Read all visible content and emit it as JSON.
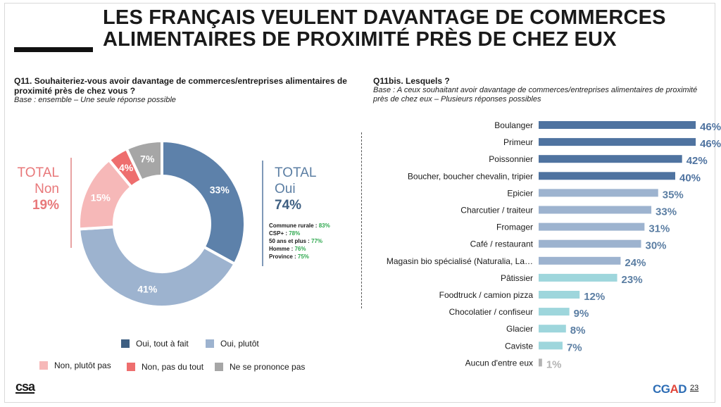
{
  "title": "LES FRANÇAIS VEULENT DAVANTAGE DE COMMERCES ALIMENTAIRES DE PROXIMITÉ PRÈS DE CHEZ EUX",
  "left": {
    "question": "Q11. Souhaiteriez-vous avoir davantage de commerces/entreprises alimentaires de proximité près de chez vous ?",
    "base": "Base : ensemble – Une seule réponse possible",
    "total_non": {
      "label1": "TOTAL",
      "label2": "Non",
      "value": "19%"
    },
    "total_oui": {
      "label1": "TOTAL",
      "label2": "Oui",
      "value": "74%"
    },
    "subgroups": [
      {
        "label": "Commune rurale : ",
        "value": "83%"
      },
      {
        "label": "CSP+ : ",
        "value": "78%"
      },
      {
        "label": "50 ans et plus : ",
        "value": "77%"
      },
      {
        "label": "Homme : ",
        "value": "76%"
      },
      {
        "label": "Province : ",
        "value": "75%"
      }
    ],
    "legend": [
      {
        "label": "Oui, tout à fait",
        "color": "#3e5f82"
      },
      {
        "label": "Oui, plutôt",
        "color": "#9db3cf"
      },
      {
        "label": "Non, plutôt pas",
        "color": "#f6b8b8"
      },
      {
        "label": "Non, pas du tout",
        "color": "#ee6e6e"
      },
      {
        "label": "Ne se prononce pas",
        "color": "#a6a6a6"
      }
    ]
  },
  "right": {
    "question": "Q11bis. Lesquels ?",
    "base": "Base : A ceux souhaitant avoir davantage de commerces/entreprises alimentaires de proximité près de chez eux – Plusieurs réponses possibles"
  },
  "footer": {
    "logo_left": "csa",
    "logo_right_1": "CG",
    "logo_right_2": "A",
    "logo_right_3": "D",
    "page": "23"
  },
  "chart_data": [
    {
      "type": "pie",
      "donut": true,
      "slices": [
        {
          "label": "Oui, tout à fait",
          "value": 33,
          "display": "33%",
          "color": "#5d81aa"
        },
        {
          "label": "Oui, plutôt",
          "value": 41,
          "display": "41%",
          "color": "#9db3cf"
        },
        {
          "label": "Non, plutôt pas",
          "value": 15,
          "display": "15%",
          "color": "#f6b8b8"
        },
        {
          "label": "Non, pas du tout",
          "value": 4,
          "display": "4%",
          "color": "#ee6e6e"
        },
        {
          "label": "Ne se prononce pas",
          "value": 7,
          "display": "7%",
          "color": "#a6a6a6"
        }
      ]
    },
    {
      "type": "bar",
      "orientation": "horizontal",
      "categories": [
        "Boulanger",
        "Primeur",
        "Poissonnier",
        "Boucher, boucher chevalin, tripier",
        "Epicier",
        "Charcutier / traiteur",
        "Fromager",
        "Café / restaurant",
        "Magasin bio spécialisé (Naturalia, La…",
        "Pâtissier",
        "Foodtruck / camion pizza",
        "Chocolatier / confiseur",
        "Glacier",
        "Caviste",
        "Aucun d'entre eux"
      ],
      "values": [
        46,
        46,
        42,
        40,
        35,
        33,
        31,
        30,
        24,
        23,
        12,
        9,
        8,
        7,
        1
      ],
      "labels": [
        "46%",
        "46%",
        "42%",
        "40%",
        "35%",
        "33%",
        "31%",
        "30%",
        "24%",
        "23%",
        "12%",
        "9%",
        "8%",
        "7%",
        "1%"
      ],
      "colors": [
        "#4f73a0",
        "#4f73a0",
        "#4f73a0",
        "#4f73a0",
        "#9db3cf",
        "#9db3cf",
        "#9db3cf",
        "#9db3cf",
        "#9db3cf",
        "#9ed6dc",
        "#9ed6dc",
        "#9ed6dc",
        "#9ed6dc",
        "#9ed6dc",
        "#b3b3b3"
      ],
      "label_colors": [
        "#4f73a0",
        "#4f73a0",
        "#4f73a0",
        "#4f73a0",
        "#5b7ea3",
        "#5b7ea3",
        "#5b7ea3",
        "#5b7ea3",
        "#5b7ea3",
        "#5b7ea3",
        "#5b7ea3",
        "#5b7ea3",
        "#5b7ea3",
        "#5b7ea3",
        "#b3b3b3"
      ]
    }
  ]
}
